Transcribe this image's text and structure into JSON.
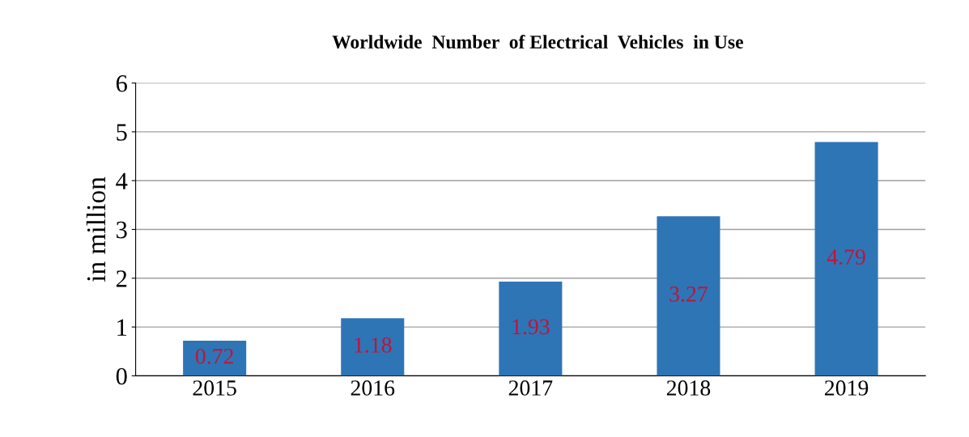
{
  "chart_data": {
    "type": "bar",
    "title": "Worldwide  Number  of Electrical  Vehicles  in Use",
    "ylabel": "in million",
    "categories": [
      "2015",
      "2016",
      "2017",
      "2018",
      "2019"
    ],
    "values": [
      0.72,
      1.18,
      1.93,
      3.27,
      4.79
    ],
    "color": "#2e75b6",
    "ylim": [
      0,
      6
    ],
    "yticks": [
      0,
      1,
      2,
      3,
      4,
      5,
      6
    ],
    "grid": "y",
    "data_labels": true
  }
}
